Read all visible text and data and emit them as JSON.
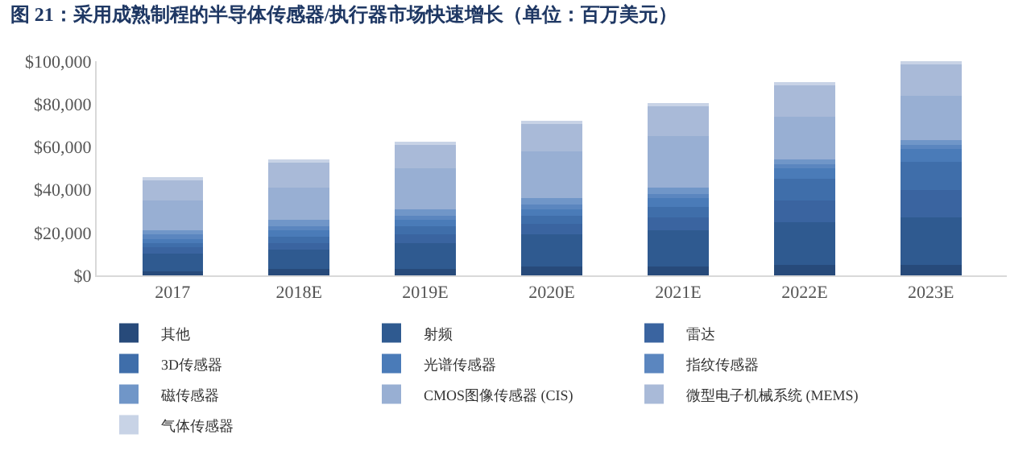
{
  "chart_data": {
    "type": "bar",
    "stacked": true,
    "title": "图 21：采用成熟制程的半导体传感器/执行器市场快速增长（单位：百万美元）",
    "categories": [
      "2017",
      "2018E",
      "2019E",
      "2020E",
      "2021E",
      "2022E",
      "2023E"
    ],
    "series": [
      {
        "name": "其他",
        "color": "#274a7a",
        "values": [
          2000,
          3000,
          3000,
          4000,
          4000,
          5000,
          5000
        ]
      },
      {
        "name": "射频",
        "color": "#2f5a90",
        "values": [
          8000,
          9000,
          12000,
          15000,
          17000,
          20000,
          22000
        ]
      },
      {
        "name": "雷达",
        "color": "#3a64a0",
        "values": [
          3000,
          3000,
          4000,
          5000,
          6000,
          10000,
          13000
        ]
      },
      {
        "name": "3D传感器",
        "color": "#3f6eaa",
        "values": [
          2000,
          3000,
          4000,
          4000,
          5000,
          10000,
          13000
        ]
      },
      {
        "name": "光谱传感器",
        "color": "#4a7bb8",
        "values": [
          2000,
          3000,
          3000,
          3000,
          4000,
          5000,
          6000
        ]
      },
      {
        "name": "指纹传感器",
        "color": "#5b86bf",
        "values": [
          2000,
          2000,
          2000,
          2000,
          2000,
          2000,
          2000
        ]
      },
      {
        "name": "磁传感器",
        "color": "#7096c8",
        "values": [
          2000,
          3000,
          3000,
          3000,
          3000,
          2000,
          2000
        ]
      },
      {
        "name": "CMOS图像传感器 (CIS)",
        "color": "#98afd3",
        "values": [
          14000,
          15000,
          19000,
          22000,
          24000,
          20000,
          21000
        ]
      },
      {
        "name": "微型电子机械系统 (MEMS)",
        "color": "#a9bad8",
        "values": [
          10000,
          12000,
          11000,
          13000,
          14000,
          15000,
          15000
        ]
      },
      {
        "name": "气体传感器",
        "color": "#c8d3e6",
        "values": [
          1000,
          1000,
          1000,
          1000,
          1000,
          1000,
          1000
        ]
      }
    ],
    "ylim": [
      0,
      100000
    ],
    "yticks": [
      {
        "value": 0,
        "label": "$0"
      },
      {
        "value": 20000,
        "label": "$20,000"
      },
      {
        "value": 40000,
        "label": "$40,000"
      },
      {
        "value": 60000,
        "label": "$60,000"
      },
      {
        "value": 80000,
        "label": "$80,000"
      },
      {
        "value": 100000,
        "label": "$100,000"
      }
    ],
    "legend": "bottom"
  }
}
